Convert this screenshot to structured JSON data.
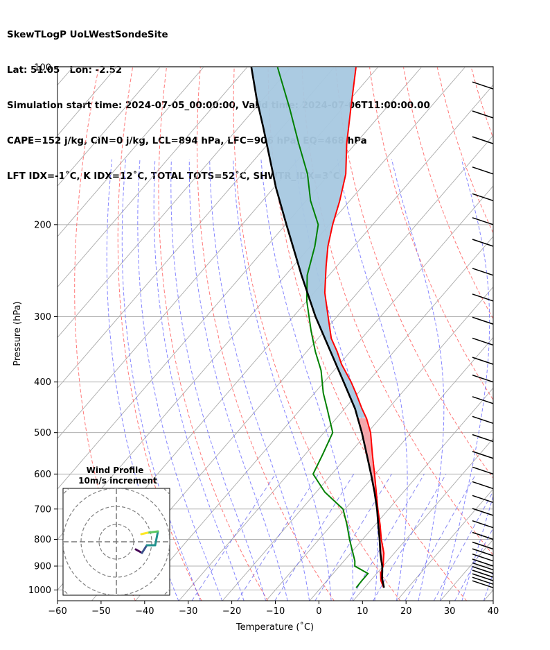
{
  "header": {
    "line1": "SkewTLogP UoLWestSondeSite",
    "line2": "Lat: 51.05   Lon: -2.52",
    "line3": "Simulation start time: 2024-07-05_00:00:00, Valid time: 2024-07-06T11:00:00.00",
    "line4": "CAPE=152 j/kg, CIN=0 j/kg, LCL=894 hPa, LFC=906 hPa, EQ=468 hPa",
    "line5": "LFT IDX=-1˚C, K IDX=12˚C, TOTAL TOTS=52˚C, SHWTR_IDX=3˚C"
  },
  "chart_data": {
    "type": "line",
    "title": "SkewTLogP UoLWestSondeSite",
    "xlabel": "Temperature (˚C)",
    "ylabel": "Pressure (hPa)",
    "xlim": [
      -60,
      40
    ],
    "ylim": [
      1050,
      100
    ],
    "yscale": "log",
    "grid": true,
    "x_ticks": [
      "−60",
      "−50",
      "−40",
      "−30",
      "−20",
      "−10",
      "0",
      "10",
      "20",
      "30",
      "40"
    ],
    "y_ticks": [
      "100",
      "200",
      "300",
      "400",
      "500",
      "600",
      "700",
      "800",
      "900",
      "1000"
    ],
    "indices": {
      "CAPE": 152,
      "CIN": 0,
      "LCL": 894,
      "LFC": 906,
      "EQ": 468
    },
    "colors": {
      "temperature": "#ff0000",
      "dewpoint": "#008000",
      "parcel": "#000000",
      "cape_fill": "#a6c8e0",
      "cin_fill": "#f4a3a8",
      "dry_adiabat": "#ff6060",
      "moist_adiabat": "#6666ff",
      "mixing_ratio": "#6a6af0",
      "isotherm": "#aaaaaa"
    },
    "series": [
      {
        "key": "temperature",
        "p": [
          990,
          960,
          930,
          900,
          850,
          800,
          750,
          700,
          650,
          600,
          550,
          500,
          470,
          450,
          420,
          400,
          370,
          350,
          330,
          300,
          270,
          240,
          220,
          200,
          180,
          160,
          140,
          120,
          100
        ],
        "t": [
          14.4,
          12.4,
          10.9,
          10.0,
          7.6,
          4.3,
          1.1,
          -2.5,
          -6.2,
          -10.2,
          -14.6,
          -19.3,
          -23.0,
          -26.0,
          -30.5,
          -33.8,
          -39.5,
          -43.0,
          -47.0,
          -52.0,
          -57.5,
          -62.5,
          -66.0,
          -69.2,
          -72.3,
          -76.2,
          -82.0,
          -88.0,
          -95.0
        ]
      },
      {
        "key": "dewpoint",
        "p": [
          990,
          960,
          930,
          900,
          880,
          850,
          800,
          750,
          700,
          650,
          600,
          550,
          500,
          450,
          420,
          380,
          350,
          320,
          280,
          250,
          220,
          200,
          180,
          160,
          140,
          120,
          100
        ],
        "t": [
          8.1,
          8.0,
          8.0,
          3.5,
          2.5,
          0.5,
          -3.0,
          -6.5,
          -10.5,
          -18.0,
          -24.3,
          -26.0,
          -28.0,
          -34.0,
          -38.0,
          -43.0,
          -48.0,
          -53.0,
          -60.0,
          -65.0,
          -69.0,
          -72.5,
          -79.0,
          -85.0,
          -93.0,
          -102.0,
          -113.0
        ]
      },
      {
        "key": "parcel",
        "p": [
          990,
          950,
          920,
          900,
          880,
          850,
          800,
          750,
          700,
          650,
          600,
          550,
          500,
          470,
          450,
          400,
          350,
          300,
          250,
          200,
          170,
          150,
          130,
          115,
          100
        ],
        "t": [
          14.5,
          12.2,
          10.8,
          9.8,
          8.6,
          6.8,
          3.9,
          0.7,
          -2.7,
          -6.6,
          -11.0,
          -15.9,
          -21.3,
          -25.0,
          -27.6,
          -35.5,
          -44.5,
          -54.9,
          -66.3,
          -79.8,
          -89.5,
          -96.5,
          -104.5,
          -111.5,
          -119.0
        ]
      }
    ],
    "wind_barbs": {
      "p": [
        990,
        975,
        960,
        945,
        930,
        915,
        900,
        880,
        860,
        835,
        800,
        760,
        720,
        680,
        640,
        600,
        560,
        520,
        480,
        440,
        400,
        370,
        340,
        310,
        280,
        250,
        220,
        200,
        180,
        160,
        140,
        125,
        110
      ]
    },
    "hodograph": {
      "title": "Wind Profile",
      "subtitle": "10m/s increment"
    }
  }
}
